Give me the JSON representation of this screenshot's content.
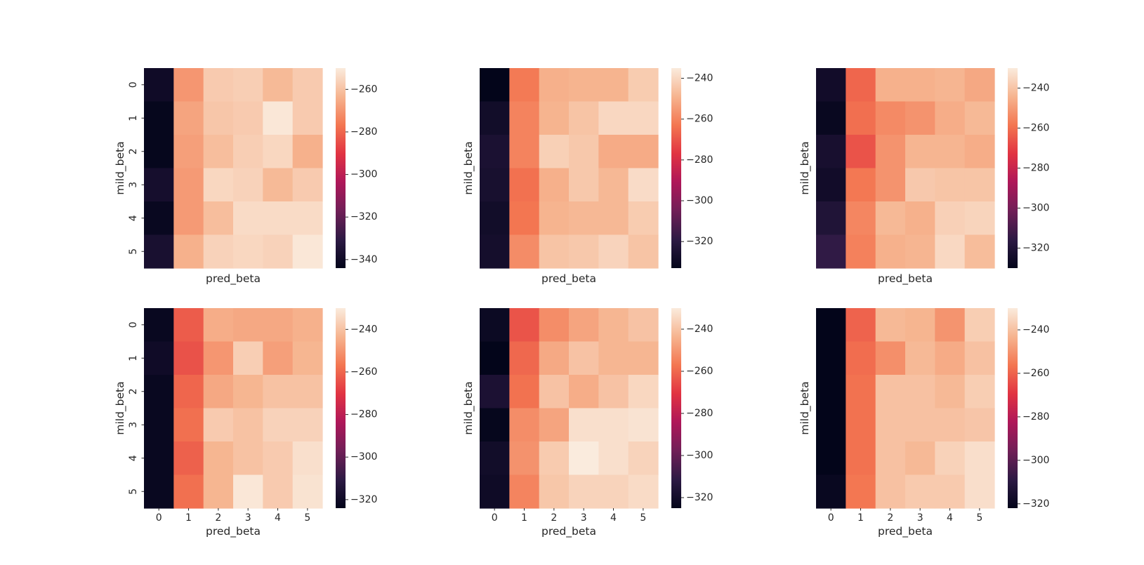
{
  "figure": {
    "colormap": "rocket",
    "colormap_stops": [
      "#03051a",
      "#2d1a44",
      "#701f57",
      "#ae1759",
      "#e13342",
      "#f37651",
      "#f6b48f",
      "#faebdd"
    ],
    "text_color": "#262626"
  },
  "chart_data": [
    {
      "type": "heatmap",
      "title": "",
      "xlabel": "pred_beta",
      "ylabel": "mild_beta",
      "x_categories": [
        "0",
        "1",
        "2",
        "3",
        "4",
        "5"
      ],
      "y_categories": [
        "0",
        "1",
        "2",
        "3",
        "4",
        "5"
      ],
      "show_x_ticklabels": false,
      "show_y_ticklabels": true,
      "show_ylabel": true,
      "colorbar_range": [
        -344,
        -250
      ],
      "colorbar_ticks": [
        -260,
        -280,
        -300,
        -320,
        -340
      ],
      "colorbar_tick_labels": [
        "−260",
        "−280",
        "−300",
        "−320",
        "−340"
      ],
      "values": [
        [
          -340,
          -270,
          -258,
          -257,
          -262,
          -258
        ],
        [
          -343,
          -267,
          -259,
          -258,
          -251,
          -258
        ],
        [
          -343,
          -268,
          -261,
          -257,
          -255,
          -264
        ],
        [
          -338,
          -269,
          -255,
          -256,
          -262,
          -258
        ],
        [
          -342,
          -269,
          -261,
          -254,
          -254,
          -254
        ],
        [
          -337,
          -264,
          -256,
          -255,
          -256,
          -251
        ]
      ]
    },
    {
      "type": "heatmap",
      "title": "",
      "xlabel": "pred_beta",
      "ylabel": "mild_beta",
      "x_categories": [
        "0",
        "1",
        "2",
        "3",
        "4",
        "5"
      ],
      "y_categories": [
        "0",
        "1",
        "2",
        "3",
        "4",
        "5"
      ],
      "show_x_ticklabels": false,
      "show_y_ticklabels": false,
      "show_ylabel": true,
      "colorbar_range": [
        -333,
        -235
      ],
      "colorbar_ticks": [
        -240,
        -260,
        -280,
        -300,
        -320
      ],
      "colorbar_tick_labels": [
        "−240",
        "−260",
        "−280",
        "−300",
        "−320"
      ],
      "values": [
        [
          -333,
          -262,
          -250,
          -249,
          -249,
          -243
        ],
        [
          -328,
          -260,
          -249,
          -245,
          -240,
          -240
        ],
        [
          -325,
          -260,
          -242,
          -244,
          -251,
          -251
        ],
        [
          -326,
          -264,
          -250,
          -244,
          -248,
          -239
        ],
        [
          -328,
          -263,
          -249,
          -248,
          -248,
          -243
        ],
        [
          -327,
          -258,
          -245,
          -244,
          -241,
          -245
        ]
      ]
    },
    {
      "type": "heatmap",
      "title": "",
      "xlabel": "pred_beta",
      "ylabel": "mild_beta",
      "x_categories": [
        "0",
        "1",
        "2",
        "3",
        "4",
        "5"
      ],
      "y_categories": [
        "0",
        "1",
        "2",
        "3",
        "4",
        "5"
      ],
      "show_x_ticklabels": false,
      "show_y_ticklabels": false,
      "show_ylabel": true,
      "colorbar_range": [
        -330,
        -230
      ],
      "colorbar_ticks": [
        -240,
        -260,
        -280,
        -300,
        -320
      ],
      "colorbar_tick_labels": [
        "−240",
        "−260",
        "−280",
        "−300",
        "−320"
      ],
      "values": [
        [
          -325,
          -262,
          -245,
          -245,
          -244,
          -247
        ],
        [
          -328,
          -260,
          -254,
          -252,
          -246,
          -243
        ],
        [
          -323,
          -266,
          -252,
          -244,
          -244,
          -246
        ],
        [
          -325,
          -258,
          -252,
          -239,
          -240,
          -240
        ],
        [
          -320,
          -255,
          -243,
          -245,
          -237,
          -236
        ],
        [
          -315,
          -256,
          -245,
          -244,
          -235,
          -242
        ]
      ]
    },
    {
      "type": "heatmap",
      "title": "",
      "xlabel": "pred_beta",
      "ylabel": "mild_beta",
      "x_categories": [
        "0",
        "1",
        "2",
        "3",
        "4",
        "5"
      ],
      "y_categories": [
        "0",
        "1",
        "2",
        "3",
        "4",
        "5"
      ],
      "show_x_ticklabels": true,
      "show_y_ticklabels": true,
      "show_ylabel": true,
      "colorbar_range": [
        -324,
        -230
      ],
      "colorbar_ticks": [
        -240,
        -260,
        -280,
        -300,
        -320
      ],
      "colorbar_tick_labels": [
        "−240",
        "−260",
        "−280",
        "−300",
        "−320"
      ],
      "values": [
        [
          -322,
          -262,
          -245,
          -246,
          -246,
          -244
        ],
        [
          -320,
          -264,
          -250,
          -237,
          -248,
          -243
        ],
        [
          -322,
          -260,
          -246,
          -243,
          -240,
          -240
        ],
        [
          -322,
          -258,
          -238,
          -240,
          -236,
          -236
        ],
        [
          -322,
          -261,
          -243,
          -240,
          -238,
          -233
        ],
        [
          -322,
          -258,
          -243,
          -231,
          -238,
          -232
        ]
      ]
    },
    {
      "type": "heatmap",
      "title": "",
      "xlabel": "pred_beta",
      "ylabel": "mild_beta",
      "x_categories": [
        "0",
        "1",
        "2",
        "3",
        "4",
        "5"
      ],
      "y_categories": [
        "0",
        "1",
        "2",
        "3",
        "4",
        "5"
      ],
      "show_x_ticklabels": true,
      "show_y_ticklabels": false,
      "show_ylabel": true,
      "colorbar_range": [
        -325,
        -230
      ],
      "colorbar_ticks": [
        -240,
        -260,
        -280,
        -300,
        -320
      ],
      "colorbar_tick_labels": [
        "−240",
        "−260",
        "−280",
        "−300",
        "−320"
      ],
      "values": [
        [
          -322,
          -264,
          -252,
          -247,
          -243,
          -240
        ],
        [
          -325,
          -260,
          -246,
          -240,
          -243,
          -243
        ],
        [
          -317,
          -258,
          -240,
          -245,
          -240,
          -235
        ],
        [
          -324,
          -252,
          -247,
          -233,
          -233,
          -232
        ],
        [
          -320,
          -251,
          -238,
          -230,
          -233,
          -236
        ],
        [
          -321,
          -254,
          -239,
          -236,
          -236,
          -234
        ]
      ]
    },
    {
      "type": "heatmap",
      "title": "",
      "xlabel": "pred_beta",
      "ylabel": "mild_beta",
      "x_categories": [
        "0",
        "1",
        "2",
        "3",
        "4",
        "5"
      ],
      "y_categories": [
        "0",
        "1",
        "2",
        "3",
        "4",
        "5"
      ],
      "show_x_ticklabels": true,
      "show_y_ticklabels": false,
      "show_ylabel": true,
      "colorbar_range": [
        -322,
        -230
      ],
      "colorbar_ticks": [
        -240,
        -260,
        -280,
        -300,
        -320
      ],
      "colorbar_tick_labels": [
        "−240",
        "−260",
        "−280",
        "−300",
        "−320"
      ],
      "values": [
        [
          -322,
          -260,
          -242,
          -243,
          -250,
          -237
        ],
        [
          -322,
          -258,
          -251,
          -242,
          -245,
          -240
        ],
        [
          -322,
          -257,
          -240,
          -240,
          -242,
          -237
        ],
        [
          -322,
          -257,
          -240,
          -240,
          -240,
          -239
        ],
        [
          -322,
          -257,
          -240,
          -242,
          -236,
          -233
        ],
        [
          -320,
          -256,
          -240,
          -238,
          -238,
          -233
        ]
      ]
    }
  ]
}
